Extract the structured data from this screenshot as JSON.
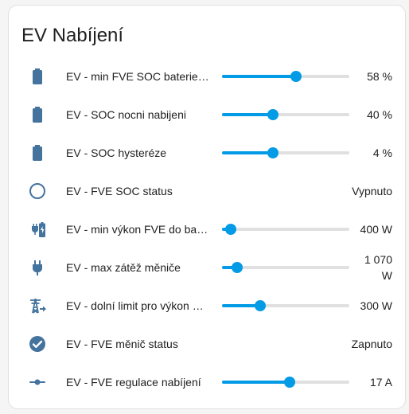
{
  "card": {
    "title": "EV Nabíjení",
    "rows": [
      {
        "name": "EV - min FVE SOC baterie p...",
        "icon": "battery-icon",
        "value": "58 %",
        "slider": 0.58
      },
      {
        "name": "EV - SOC nocni nabijeni",
        "icon": "battery-icon",
        "value": "40 %",
        "slider": 0.4
      },
      {
        "name": "EV - SOC hysteréze",
        "icon": "battery-icon",
        "value": "4 %",
        "slider": 0.4
      },
      {
        "name": "EV - FVE SOC status",
        "icon": "circle-outline-icon",
        "value": "Vypnuto"
      },
      {
        "name": "EV - min výkon FVE do bate...",
        "icon": "battery-charging-plug-icon",
        "value": "400 W",
        "slider": 0.07
      },
      {
        "name": "EV - max zátěž měniče",
        "icon": "power-plug-icon",
        "value": "1 070 W",
        "slider": 0.12
      },
      {
        "name": "EV - dolní limit pro výkon m...",
        "icon": "transmission-tower-export-icon",
        "value": "300 W",
        "slider": 0.3
      },
      {
        "name": "EV - FVE měnič status",
        "icon": "check-circle-icon",
        "value": "Zapnuto"
      },
      {
        "name": "EV - FVE regulace nabíjení",
        "icon": "slider-icon",
        "value": "17 A",
        "slider": 0.53
      }
    ]
  },
  "colors": {
    "accent": "#039be5",
    "icon": "#44739e",
    "track": "#e0e0e0"
  }
}
